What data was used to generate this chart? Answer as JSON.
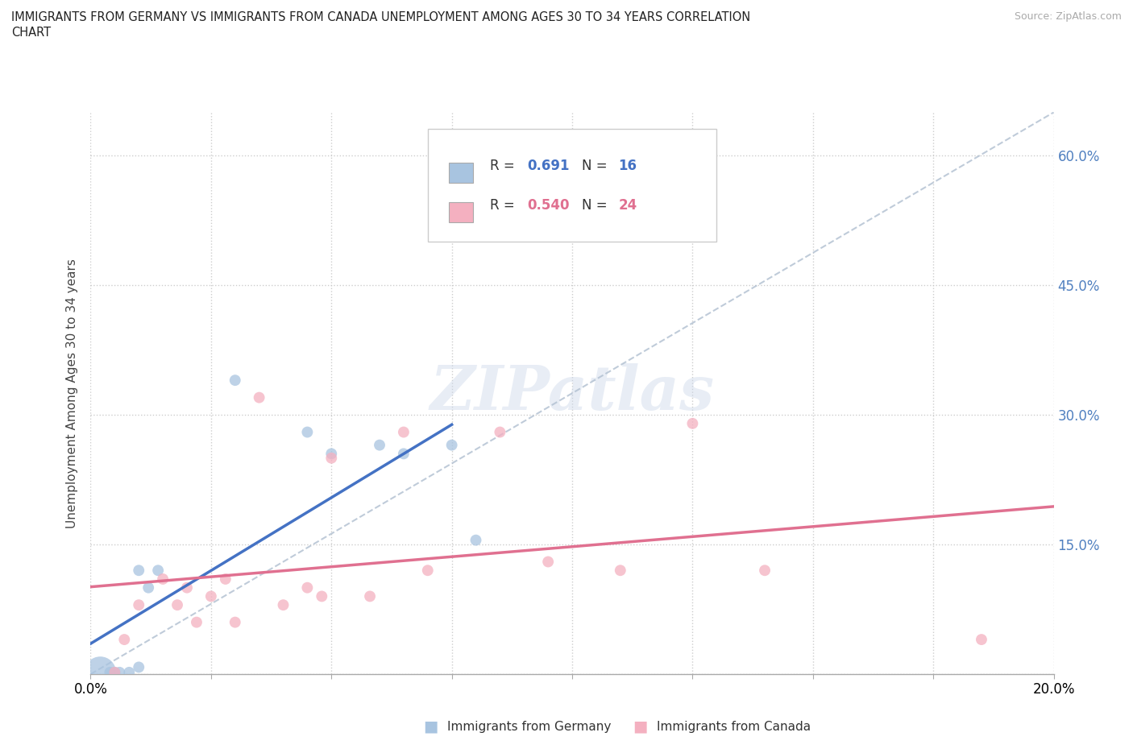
{
  "title_line1": "IMMIGRANTS FROM GERMANY VS IMMIGRANTS FROM CANADA UNEMPLOYMENT AMONG AGES 30 TO 34 YEARS CORRELATION",
  "title_line2": "CHART",
  "source": "Source: ZipAtlas.com",
  "ylabel": "Unemployment Among Ages 30 to 34 years",
  "xlim": [
    0.0,
    0.2
  ],
  "ylim": [
    0.0,
    0.65
  ],
  "xticks": [
    0.0,
    0.025,
    0.05,
    0.075,
    0.1,
    0.125,
    0.15,
    0.175,
    0.2
  ],
  "xticklabels": [
    "0.0%",
    "",
    "",
    "",
    "",
    "",
    "",
    "",
    "20.0%"
  ],
  "yticks_right": [
    0.0,
    0.15,
    0.3,
    0.45,
    0.6
  ],
  "ytick_right_labels": [
    "",
    "15.0%",
    "30.0%",
    "45.0%",
    "60.0%"
  ],
  "germany_R": 0.691,
  "germany_N": 16,
  "canada_R": 0.54,
  "canada_N": 24,
  "germany_color": "#a8c4e0",
  "canada_color": "#f4b0c0",
  "germany_line_color": "#4472c4",
  "canada_line_color": "#e07090",
  "ref_line_color": "#b0bfd0",
  "watermark_text": "ZIPatlas",
  "germany_x": [
    0.002,
    0.004,
    0.005,
    0.006,
    0.008,
    0.01,
    0.01,
    0.012,
    0.014,
    0.03,
    0.045,
    0.05,
    0.06,
    0.065,
    0.075,
    0.08
  ],
  "germany_y": [
    0.002,
    0.002,
    0.002,
    0.002,
    0.002,
    0.008,
    0.12,
    0.1,
    0.12,
    0.34,
    0.28,
    0.255,
    0.265,
    0.255,
    0.265,
    0.155
  ],
  "germany_sizes": [
    800,
    100,
    100,
    100,
    100,
    100,
    100,
    100,
    100,
    100,
    100,
    100,
    100,
    100,
    100,
    100
  ],
  "canada_x": [
    0.005,
    0.007,
    0.01,
    0.015,
    0.018,
    0.02,
    0.022,
    0.025,
    0.028,
    0.03,
    0.035,
    0.04,
    0.045,
    0.048,
    0.05,
    0.058,
    0.065,
    0.07,
    0.085,
    0.095,
    0.11,
    0.125,
    0.14,
    0.185
  ],
  "canada_y": [
    0.002,
    0.04,
    0.08,
    0.11,
    0.08,
    0.1,
    0.06,
    0.09,
    0.11,
    0.06,
    0.32,
    0.08,
    0.1,
    0.09,
    0.25,
    0.09,
    0.28,
    0.12,
    0.28,
    0.13,
    0.12,
    0.29,
    0.12,
    0.04
  ],
  "canada_sizes": [
    100,
    100,
    100,
    100,
    100,
    100,
    100,
    100,
    100,
    100,
    100,
    100,
    100,
    100,
    100,
    100,
    100,
    100,
    100,
    100,
    100,
    100,
    100,
    100
  ],
  "grid_color": "#c8c8c8",
  "background_color": "#ffffff"
}
